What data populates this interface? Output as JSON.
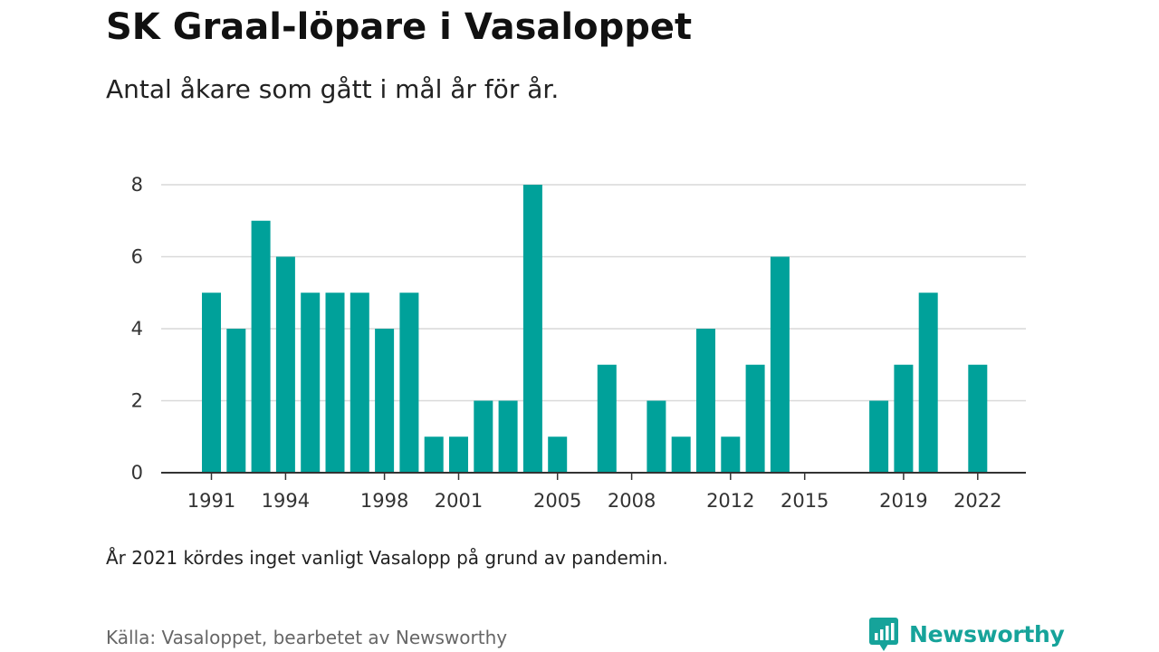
{
  "title": "SK Graal-löpare i Vasaloppet",
  "subtitle": "Antal åkare som gått i mål år för år.",
  "note": "År 2021 kördes inget vanligt Vasalopp på grund av pandemin.",
  "source": "Källa: Vasaloppet, bearbetet av Newsworthy",
  "brand": {
    "name": "Newsworthy",
    "icon": "newsworthy-logo-icon",
    "color": "#16a39a"
  },
  "chart_data": {
    "type": "bar",
    "title": "SK Graal-löpare i Vasaloppet",
    "subtitle": "Antal åkare som gått i mål år för år.",
    "xlabel": "",
    "ylabel": "",
    "ylim": [
      0,
      8
    ],
    "y_ticks": [
      0,
      2,
      4,
      6,
      8
    ],
    "grid": true,
    "bar_color": "#00a19a",
    "x_tick_labels": [
      "1991",
      "1994",
      "1998",
      "2001",
      "2005",
      "2008",
      "2012",
      "2015",
      "2019",
      "2022"
    ],
    "categories": [
      1991,
      1992,
      1993,
      1994,
      1995,
      1996,
      1997,
      1998,
      1999,
      2000,
      2001,
      2002,
      2003,
      2004,
      2005,
      2006,
      2007,
      2008,
      2009,
      2010,
      2011,
      2012,
      2013,
      2014,
      2015,
      2016,
      2017,
      2018,
      2019,
      2020,
      2021,
      2022
    ],
    "values": [
      5,
      4,
      7,
      6,
      5,
      5,
      5,
      4,
      5,
      1,
      1,
      2,
      2,
      8,
      1,
      0,
      3,
      0,
      2,
      1,
      4,
      1,
      3,
      6,
      0,
      0,
      0,
      2,
      3,
      5,
      0,
      3
    ]
  }
}
